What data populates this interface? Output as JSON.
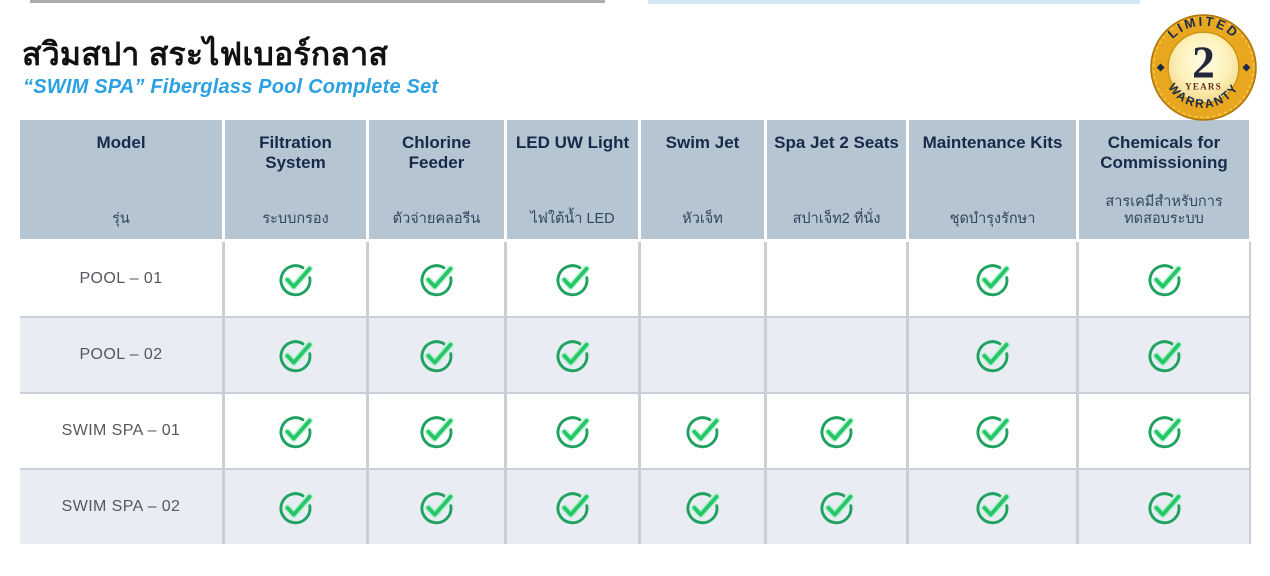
{
  "page": {
    "title_th": "สวิมสปา สระไฟเบอร์กลาส",
    "subtitle_en": "“SWIM SPA” Fiberglass Pool Complete Set"
  },
  "badge": {
    "top": "LIMITED",
    "bottom": "WARRANTY",
    "number": "2",
    "unit": "YEARS"
  },
  "table": {
    "columns": [
      {
        "en": "Model",
        "th": "รุ่น"
      },
      {
        "en": "Filtration System",
        "th": "ระบบกรอง"
      },
      {
        "en": "Chlorine Feeder",
        "th": "ตัวจ่ายคลอรีน"
      },
      {
        "en": "LED UW Light",
        "th": "ไฟใต้น้ำ LED"
      },
      {
        "en": "Swim Jet",
        "th": "หัวเจ็ท"
      },
      {
        "en": "Spa Jet 2 Seats",
        "th": "สปาเจ็ท2 ที่นั่ง"
      },
      {
        "en": "Maintenance Kits",
        "th": "ชุดบำรุงรักษา"
      },
      {
        "en": "Chemicals for Commissioning",
        "th": "สารเคมีสำหรับการทดสอบระบบ"
      }
    ],
    "rows": [
      {
        "model": "POOL – 01",
        "features": [
          true,
          true,
          true,
          false,
          false,
          true,
          true
        ]
      },
      {
        "model": "POOL – 02",
        "features": [
          true,
          true,
          true,
          false,
          false,
          true,
          true
        ]
      },
      {
        "model": "SWIM SPA – 01",
        "features": [
          true,
          true,
          true,
          true,
          true,
          true,
          true
        ]
      },
      {
        "model": "SWIM SPA – 02",
        "features": [
          true,
          true,
          true,
          true,
          true,
          true,
          true
        ]
      }
    ]
  },
  "colors": {
    "accent_blue": "#2ba0e3",
    "header_bg": "#b6c5d2",
    "row_alt_bg": "#e9edf3",
    "check_ring_green": "#1fa160",
    "check_mark_green": "#25c768",
    "badge_gold": "#e8a71e",
    "badge_navy": "#1c2b4a"
  },
  "icons": {
    "check": "check-circle-icon",
    "badge": "warranty-seal-icon"
  }
}
